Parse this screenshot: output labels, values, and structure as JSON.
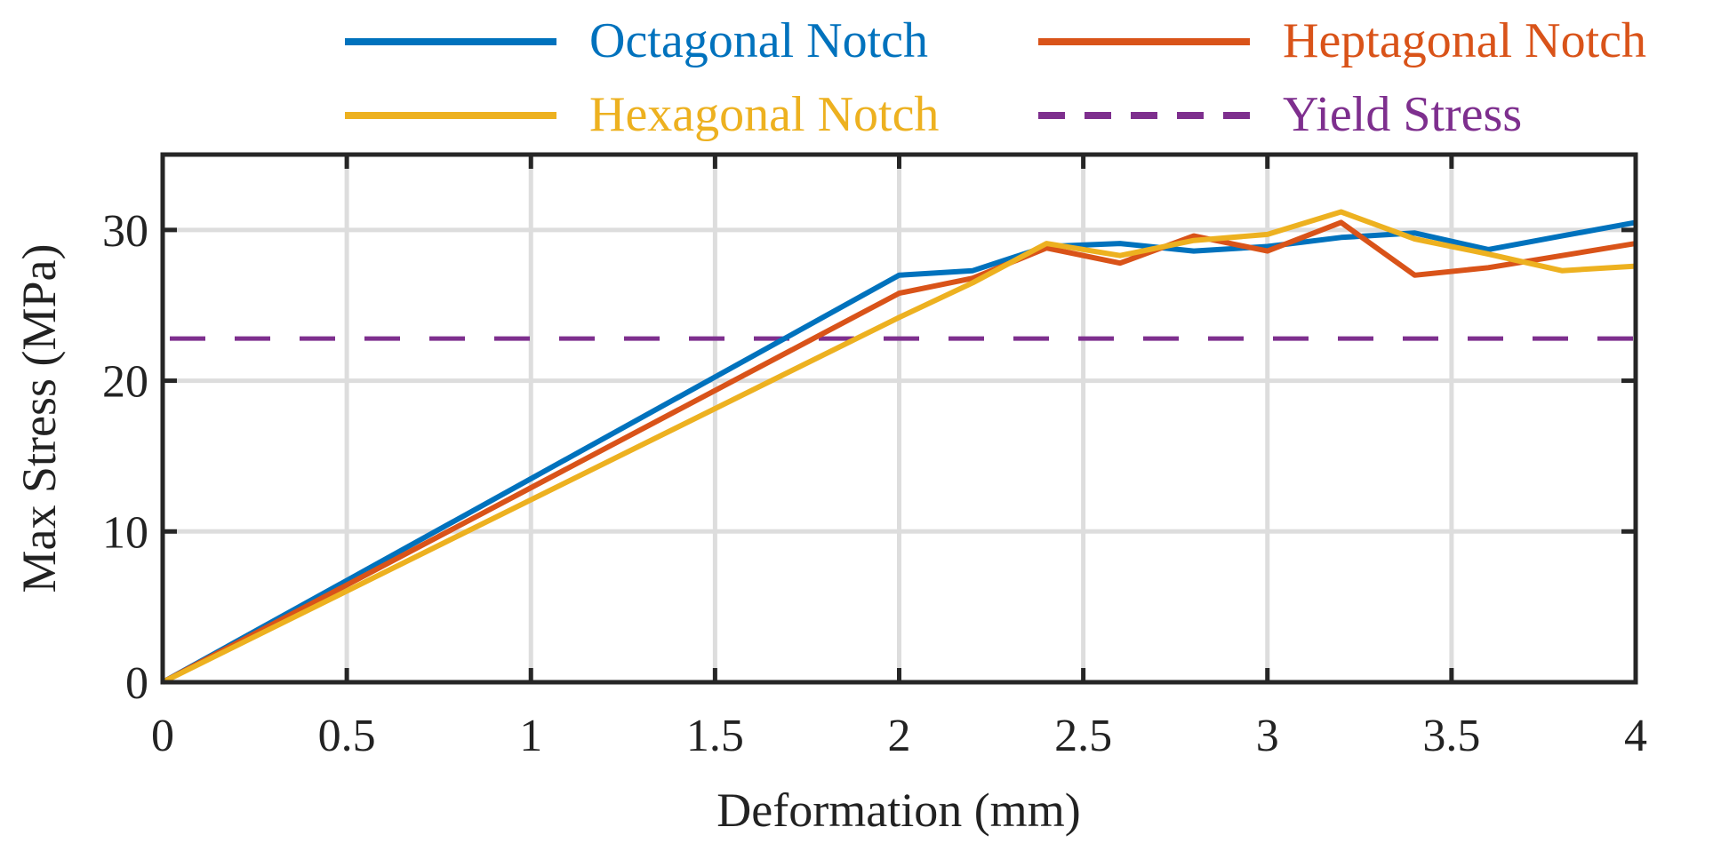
{
  "chart_data": {
    "type": "line",
    "title": "",
    "xlabel": "Deformation (mm)",
    "ylabel": "Max Stress (MPa)",
    "xlim": [
      0,
      4
    ],
    "ylim": [
      0,
      35
    ],
    "grid": true,
    "legend_position": "top",
    "x_ticks": [
      0,
      0.5,
      1,
      1.5,
      2,
      2.5,
      3,
      3.5,
      4
    ],
    "x_tick_labels": [
      "0",
      "0.5",
      "1",
      "1.5",
      "2",
      "2.5",
      "3",
      "3.5",
      "4"
    ],
    "y_ticks": [
      0,
      10,
      20,
      30
    ],
    "y_tick_labels": [
      "0",
      "10",
      "20",
      "30"
    ],
    "series": [
      {
        "name": "Octagonal Notch",
        "color": "#0072BD",
        "style": "solid",
        "x": [
          0,
          2.0,
          2.2,
          2.4,
          2.6,
          2.8,
          3.0,
          3.2,
          3.4,
          3.6,
          3.8,
          4.0
        ],
        "y": [
          0,
          27.0,
          27.3,
          28.9,
          29.1,
          28.6,
          28.9,
          29.5,
          29.8,
          28.7,
          29.6,
          30.5
        ]
      },
      {
        "name": "Heptagonal Notch",
        "color": "#D95319",
        "style": "solid",
        "x": [
          0,
          2.0,
          2.2,
          2.4,
          2.6,
          2.8,
          3.0,
          3.2,
          3.4,
          3.6,
          3.8,
          4.0
        ],
        "y": [
          0,
          25.8,
          26.8,
          28.8,
          27.8,
          29.6,
          28.6,
          30.5,
          27.0,
          27.5,
          28.3,
          29.1
        ]
      },
      {
        "name": "Hexagonal Notch",
        "color": "#EDB120",
        "style": "solid",
        "x": [
          0,
          2.0,
          2.2,
          2.4,
          2.6,
          2.8,
          3.0,
          3.2,
          3.4,
          3.6,
          3.8,
          4.0
        ],
        "y": [
          0,
          24.2,
          26.5,
          29.1,
          28.3,
          29.3,
          29.7,
          31.2,
          29.4,
          28.4,
          27.3,
          27.6
        ]
      },
      {
        "name": "Yield Stress",
        "color": "#7E2F8E",
        "style": "dashed",
        "x": [
          0,
          4
        ],
        "y": [
          22.8,
          22.8
        ]
      }
    ]
  }
}
